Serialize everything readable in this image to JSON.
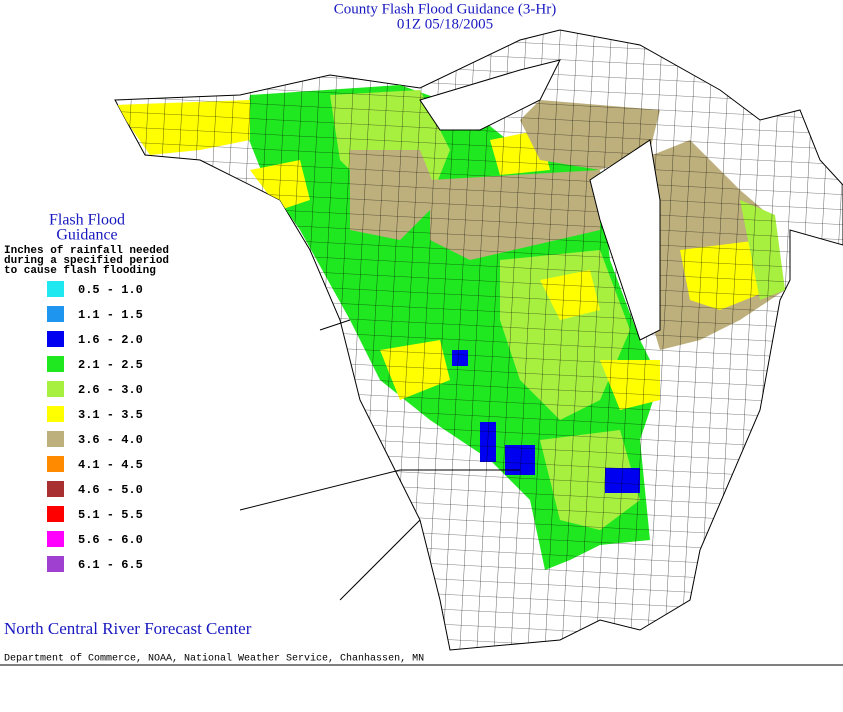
{
  "header": {
    "title": "County Flash Flood Guidance (3-Hr)",
    "subtitle": "01Z 05/18/2005"
  },
  "legend": {
    "title": [
      "Flash Flood",
      "Guidance"
    ],
    "description": [
      "Inches of rainfall needed",
      "during a specified period",
      "to cause flash flooding"
    ],
    "items": [
      {
        "label": "0.5 - 1.0",
        "color": "#20e8f0"
      },
      {
        "label": "1.1 - 1.5",
        "color": "#1e96f0"
      },
      {
        "label": "1.6 - 2.0",
        "color": "#0000f0"
      },
      {
        "label": "2.1 - 2.5",
        "color": "#20e820"
      },
      {
        "label": "2.6 - 3.0",
        "color": "#a8f040"
      },
      {
        "label": "3.1 - 3.5",
        "color": "#ffff00"
      },
      {
        "label": "3.6 - 4.0",
        "color": "#beb07c"
      },
      {
        "label": "4.1 - 4.5",
        "color": "#ff8a00"
      },
      {
        "label": "4.6 - 5.0",
        "color": "#a83030"
      },
      {
        "label": "5.1 - 5.5",
        "color": "#ff0000"
      },
      {
        "label": "5.6 - 6.0",
        "color": "#ff00ff"
      },
      {
        "label": "6.1 - 6.5",
        "color": "#a040d0"
      }
    ]
  },
  "footer": {
    "center": "North Central River Forecast Center",
    "credit": "Department of Commerce, NOAA, National Weather Service, Chanhassen, MN"
  }
}
